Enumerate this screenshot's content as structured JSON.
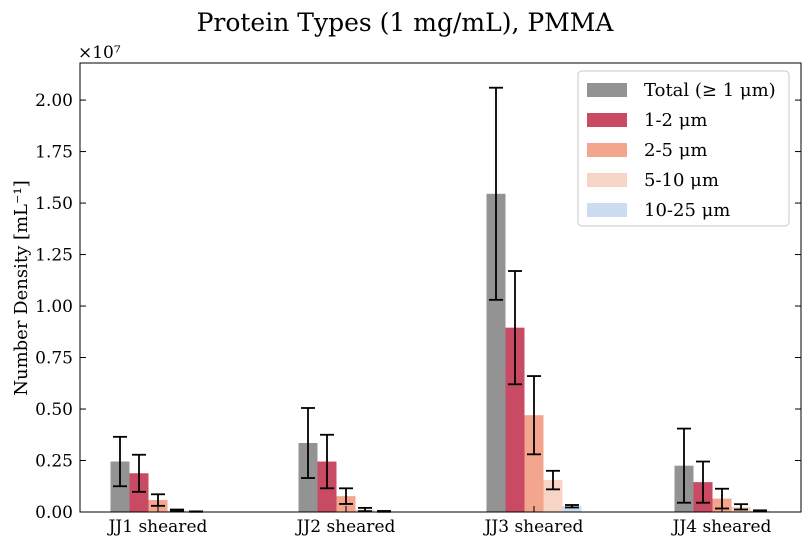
{
  "chart_data": {
    "type": "bar",
    "title": "Protein Types (1 mg/mL), PMMA",
    "xlabel": "",
    "ylabel": "Number Density [mL⁻¹]",
    "y_multiplier": "×10⁷",
    "ylim": [
      0,
      2.18
    ],
    "yticks": [
      "0.00",
      "0.25",
      "0.50",
      "0.75",
      "1.00",
      "1.25",
      "1.50",
      "1.75",
      "2.00"
    ],
    "grid": false,
    "legend_position": "top-right",
    "categories": [
      "JJ1 sheared",
      "JJ2 sheared",
      "JJ3 sheared",
      "JJ4 sheared"
    ],
    "series": [
      {
        "name": "Total (≥ 1 μm)",
        "color": "#939393",
        "values": [
          0.245,
          0.335,
          1.545,
          0.225
        ],
        "errors": [
          0.12,
          0.17,
          0.515,
          0.18
        ]
      },
      {
        "name": "1-2 μm",
        "color": "#c94a63",
        "values": [
          0.188,
          0.245,
          0.895,
          0.145
        ],
        "errors": [
          0.09,
          0.13,
          0.275,
          0.1
        ]
      },
      {
        "name": "2-5 μm",
        "color": "#f4a58d",
        "values": [
          0.058,
          0.077,
          0.47,
          0.065
        ],
        "errors": [
          0.028,
          0.038,
          0.19,
          0.048
        ]
      },
      {
        "name": "5-10 μm",
        "color": "#f6d5c5",
        "values": [
          0.008,
          0.012,
          0.155,
          0.025
        ],
        "errors": [
          0.004,
          0.008,
          0.045,
          0.013
        ]
      },
      {
        "name": "10-25 μm",
        "color": "#ccdcf3",
        "values": [
          0.002,
          0.003,
          0.028,
          0.005
        ],
        "errors": [
          0.001,
          0.002,
          0.006,
          0.003
        ]
      }
    ]
  }
}
